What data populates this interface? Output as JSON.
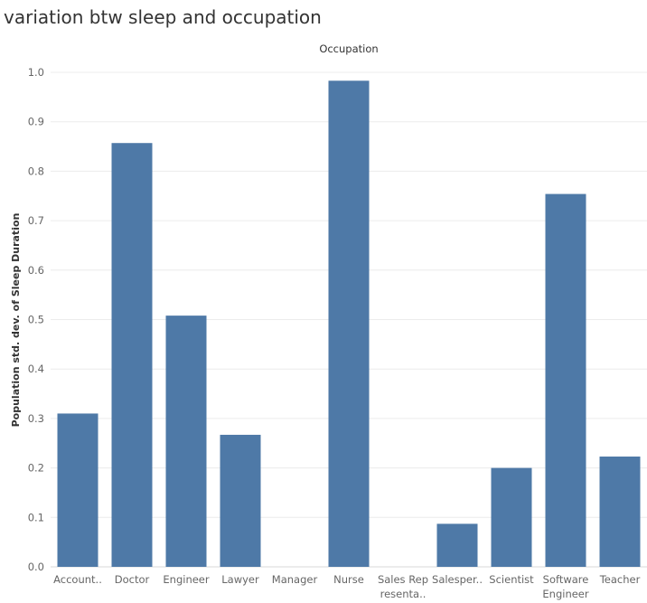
{
  "chart_data": {
    "type": "bar",
    "title": "variation btw sleep and occupation",
    "column_header": "Occupation",
    "ylabel": "Population std. dev. of Sleep Duration",
    "xlabel": "",
    "ylim": [
      0,
      1.0
    ],
    "yticks": [
      0.0,
      0.1,
      0.2,
      0.3,
      0.4,
      0.5,
      0.6,
      0.7,
      0.8,
      0.9,
      1.0
    ],
    "grid": true,
    "bar_color": "#4e79a7",
    "categories": [
      [
        "Account.."
      ],
      [
        "Doctor"
      ],
      [
        "Engineer"
      ],
      [
        "Lawyer"
      ],
      [
        "Manager"
      ],
      [
        "Nurse"
      ],
      [
        "Sales Rep",
        "resenta.."
      ],
      [
        "Salesper.."
      ],
      [
        "Scientist"
      ],
      [
        "Software",
        "Engineer"
      ],
      [
        "Teacher"
      ]
    ],
    "values": [
      0.31,
      0.857,
      0.508,
      0.267,
      0.0,
      0.983,
      0.0,
      0.087,
      0.2,
      0.754,
      0.223
    ]
  }
}
